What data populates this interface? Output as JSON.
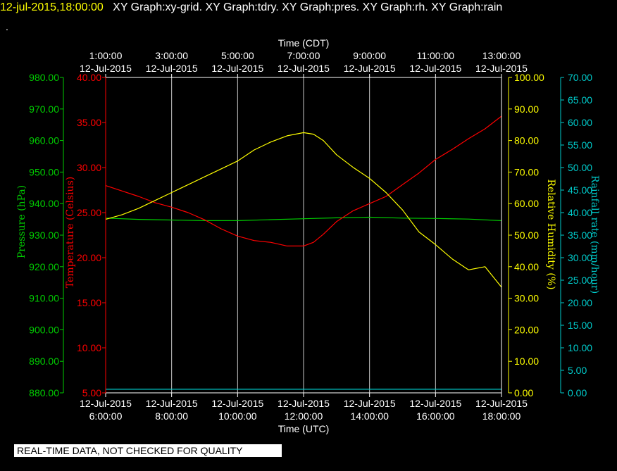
{
  "header": {
    "timestamp": "12-jul-2015,18:00:00",
    "graphs": "XY Graph:xy-grid.  XY Graph:tdry.  XY Graph:pres.  XY Graph:rh.  XY Graph:rain",
    "second_line": "."
  },
  "disclaimer": "REAL-TIME DATA, NOT CHECKED FOR QUALITY",
  "chart_data": {
    "type": "line",
    "top_axis": {
      "label": "Time (CDT)",
      "ticks": [
        {
          "x": 6,
          "line1": "1:00:00",
          "line2": "12-Jul-2015"
        },
        {
          "x": 8,
          "line1": "3:00:00",
          "line2": "12-Jul-2015"
        },
        {
          "x": 10,
          "line1": "5:00:00",
          "line2": "12-Jul-2015"
        },
        {
          "x": 12,
          "line1": "7:00:00",
          "line2": "12-Jul-2015"
        },
        {
          "x": 14,
          "line1": "9:00:00",
          "line2": "12-Jul-2015"
        },
        {
          "x": 16,
          "line1": "11:00:00",
          "line2": "12-Jul-2015"
        },
        {
          "x": 18,
          "line1": "13:00:00",
          "line2": "12-Jul-2015"
        }
      ]
    },
    "bottom_axis": {
      "label": "Time (UTC)",
      "xlim": [
        6,
        18
      ],
      "ticks": [
        {
          "x": 6,
          "line1": "12-Jul-2015",
          "line2": "6:00:00"
        },
        {
          "x": 8,
          "line1": "12-Jul-2015",
          "line2": "8:00:00"
        },
        {
          "x": 10,
          "line1": "12-Jul-2015",
          "line2": "10:00:00"
        },
        {
          "x": 12,
          "line1": "12-Jul-2015",
          "line2": "12:00:00"
        },
        {
          "x": 14,
          "line1": "12-Jul-2015",
          "line2": "14:00:00"
        },
        {
          "x": 16,
          "line1": "12-Jul-2015",
          "line2": "16:00:00"
        },
        {
          "x": 18,
          "line1": "12-Jul-2015",
          "line2": "18:00:00"
        }
      ]
    },
    "grid": "vertical",
    "axes": {
      "pressure": {
        "label": "Pressure (hPa)",
        "color": "#00cc00",
        "min": 880,
        "max": 980,
        "ticks": [
          "880.00",
          "890.00",
          "900.00",
          "910.00",
          "920.00",
          "930.00",
          "940.00",
          "950.00",
          "960.00",
          "970.00",
          "980.00"
        ]
      },
      "temperature": {
        "label": "Temperature (Celsius)",
        "color": "#ff0000",
        "min": 5,
        "max": 40,
        "ticks": [
          "5.00",
          "10.00",
          "15.00",
          "20.00",
          "25.00",
          "30.00",
          "35.00",
          "40.00"
        ]
      },
      "humidity": {
        "label": "Relative Humidity (%)",
        "color": "#ffff00",
        "min": 0,
        "max": 100,
        "ticks": [
          "0.00",
          "10.00",
          "20.00",
          "30.00",
          "40.00",
          "50.00",
          "60.00",
          "70.00",
          "80.00",
          "90.00",
          "100.00"
        ]
      },
      "rain": {
        "label": "Rainfall rate (mm/hour)",
        "color": "#00cccc",
        "min": 0,
        "max": 70,
        "ticks": [
          "0.00",
          "5.00",
          "10.00",
          "15.00",
          "20.00",
          "25.00",
          "30.00",
          "35.00",
          "40.00",
          "45.00",
          "50.00",
          "55.00",
          "60.00",
          "65.00",
          "70.00"
        ]
      }
    },
    "series": [
      {
        "axis": "pressure",
        "color": "#00cc00",
        "x": [
          6,
          7,
          8,
          9,
          10,
          11,
          12,
          13,
          14,
          15,
          16,
          17,
          18
        ],
        "y": [
          935.4,
          935.0,
          934.8,
          934.6,
          934.6,
          934.9,
          935.2,
          935.5,
          935.7,
          935.4,
          935.3,
          935.1,
          934.6
        ]
      },
      {
        "axis": "temperature",
        "color": "#ff0000",
        "x": [
          6,
          6.5,
          7,
          7.5,
          8,
          8.5,
          9,
          9.5,
          10,
          10.5,
          11,
          11.5,
          12,
          12.3,
          12.6,
          13,
          13.5,
          14,
          14.5,
          15,
          15.5,
          16,
          16.5,
          17,
          17.5,
          18
        ],
        "y": [
          28.0,
          27.4,
          26.8,
          26.1,
          25.6,
          25.0,
          24.2,
          23.2,
          22.4,
          21.9,
          21.7,
          21.3,
          21.3,
          21.7,
          22.6,
          24.0,
          25.2,
          26.0,
          26.8,
          28.1,
          29.4,
          30.9,
          32.0,
          33.2,
          34.3,
          35.7
        ]
      },
      {
        "axis": "humidity",
        "color": "#ffff00",
        "x": [
          6,
          6.5,
          7,
          7.5,
          8,
          8.5,
          9,
          9.5,
          10,
          10.5,
          11,
          11.5,
          12,
          12.3,
          12.6,
          13,
          13.5,
          14,
          14.5,
          15,
          15.5,
          16,
          16.5,
          17,
          17.5,
          18
        ],
        "y": [
          55.0,
          56.5,
          58.5,
          61.0,
          63.5,
          66.0,
          68.5,
          71.0,
          73.5,
          77.0,
          79.5,
          81.5,
          82.5,
          82.0,
          80.0,
          75.5,
          71.5,
          68.0,
          63.5,
          58.0,
          51.0,
          47.0,
          42.5,
          39.0,
          40.0,
          33.5
        ]
      },
      {
        "axis": "rain",
        "color": "#00cccc",
        "x": [
          6,
          18
        ],
        "y": [
          0.8,
          0.8
        ]
      }
    ]
  }
}
